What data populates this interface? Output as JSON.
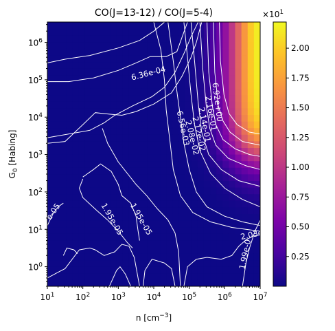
{
  "chart_data": {
    "type": "heatmap",
    "title": "CO(J=13-12) / CO(J=5-4)",
    "xlabel_base": "n [cm",
    "xlabel_exp": "−3",
    "xlabel_end": "]",
    "ylabel_sym": "G",
    "ylabel_sub": "0",
    "ylabel_rest": " [Habing]",
    "x_scale": "log",
    "y_scale": "log",
    "xlim": [
      10,
      10000000
    ],
    "ylim": [
      0.3,
      3500000
    ],
    "x_tick_labels": [
      {
        "base": "10",
        "exp": "1"
      },
      {
        "base": "10",
        "exp": "2"
      },
      {
        "base": "10",
        "exp": "3"
      },
      {
        "base": "10",
        "exp": "4"
      },
      {
        "base": "10",
        "exp": "5"
      },
      {
        "base": "10",
        "exp": "6"
      },
      {
        "base": "10",
        "exp": "7"
      }
    ],
    "y_tick_labels": [
      {
        "base": "10",
        "exp": "0"
      },
      {
        "base": "10",
        "exp": "1"
      },
      {
        "base": "10",
        "exp": "2"
      },
      {
        "base": "10",
        "exp": "3"
      },
      {
        "base": "10",
        "exp": "4"
      },
      {
        "base": "10",
        "exp": "5"
      },
      {
        "base": "10",
        "exp": "6"
      }
    ],
    "colormap": "plasma",
    "colorbar": {
      "min": 0.0,
      "max": 2.22,
      "ticks": [
        "0.25",
        "0.50",
        "0.75",
        "1.00",
        "1.25",
        "1.50",
        "1.75",
        "2.00"
      ],
      "tick_values": [
        0.25,
        0.5,
        0.75,
        1.0,
        1.25,
        1.5,
        1.75,
        2.0
      ],
      "offset_base": "×10",
      "offset_exp": "1"
    },
    "contour_labels": [
      {
        "text": "6.36e-04",
        "logn": 3.85,
        "logg": 5.17,
        "angle": -15
      },
      {
        "text": "6.92e+00",
        "logn": 5.79,
        "logg": 4.4,
        "angle": 83
      },
      {
        "text": "2.16e-01",
        "logn": 5.61,
        "logg": 4.1,
        "angle": 80
      },
      {
        "text": "2.14e-01",
        "logn": 5.43,
        "logg": 3.8,
        "angle": 79
      },
      {
        "text": "2.12e-02",
        "logn": 5.27,
        "logg": 3.55,
        "angle": 77
      },
      {
        "text": "2.08e-02",
        "logn": 5.08,
        "logg": 3.45,
        "angle": 76
      },
      {
        "text": "6.56e-03",
        "logn": 4.82,
        "logg": 3.7,
        "angle": 78
      },
      {
        "text": "1.95e-05",
        "logn": 2.82,
        "logg": 1.27,
        "angle": 60
      },
      {
        "text": "1.95e-05",
        "logn": 3.64,
        "logg": 1.27,
        "angle": 60
      },
      {
        "text": "e-05",
        "logn": 1.17,
        "logg": 1.47,
        "angle": -55
      },
      {
        "text": "2.03e",
        "logn": 6.76,
        "logg": 0.85,
        "angle": -12
      },
      {
        "text": "1.99e-0",
        "logn": 6.58,
        "logg": 0.33,
        "angle": -78
      }
    ]
  }
}
